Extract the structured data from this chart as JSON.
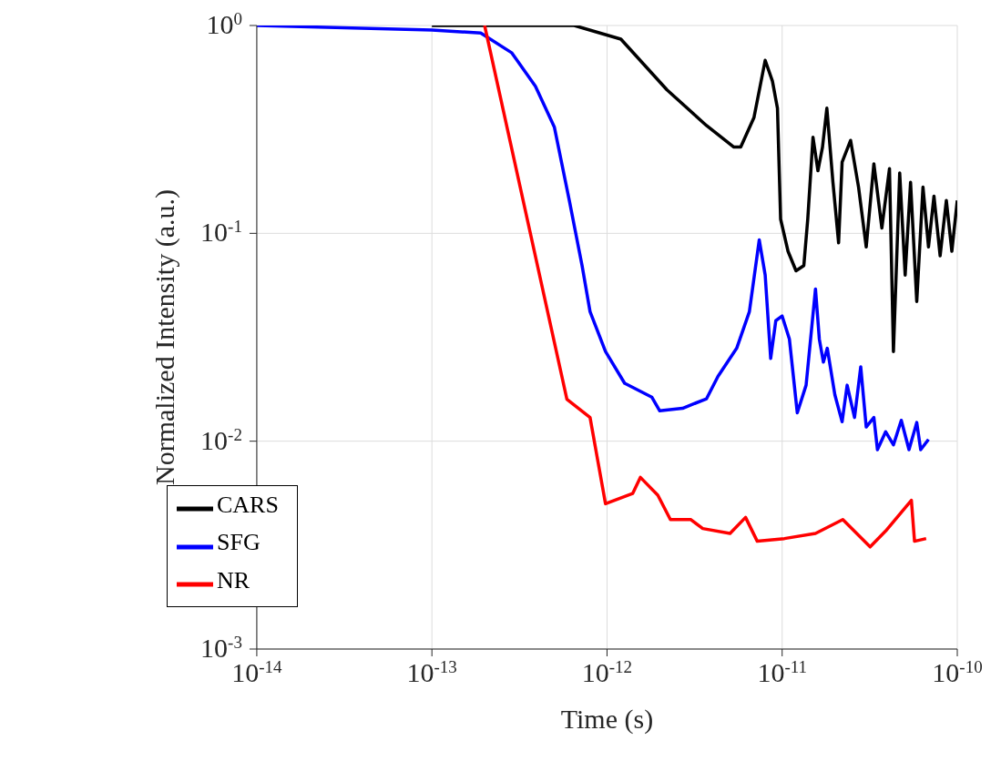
{
  "chart_data": {
    "type": "line",
    "xlabel": "Time (s)",
    "ylabel": "Normalized Intensity (a.u.)",
    "log": "xy",
    "grid": true,
    "legend": "bottom left",
    "line_style": "solid",
    "marker": "none",
    "xlim": [
      1e-14,
      1e-10
    ],
    "ylim": [
      0.001,
      1
    ],
    "xticks": [
      {
        "value": 1e-14,
        "label": "10$^{-14}$"
      },
      {
        "value": 1e-13,
        "label": "10$^{-13}$"
      },
      {
        "value": 1e-12,
        "label": "10$^{-12}$"
      },
      {
        "value": 1e-11,
        "label": "10$^{-11}$"
      },
      {
        "value": 1e-10,
        "label": "10$^{-10}$"
      }
    ],
    "yticks": [
      {
        "value": 0.001,
        "label": "10$^{-3}$"
      },
      {
        "value": 0.01,
        "label": "10$^{-2}$"
      },
      {
        "value": 0.1,
        "label": "10$^{-1}$"
      },
      {
        "value": 1,
        "label": "10$^{0}$"
      }
    ],
    "series": [
      {
        "name": "CARS",
        "color": "#000000",
        "x": [
          1e-13,
          6.5e-13,
          1.2e-12,
          2.2e-12,
          3.7e-12,
          5.3e-12,
          5.8e-12,
          6.9e-12,
          8e-12,
          8.8e-12,
          9.4e-12,
          9.8e-12,
          1.08e-11,
          1.2e-11,
          1.33e-11,
          1.4e-11,
          1.5e-11,
          1.6e-11,
          1.7e-11,
          1.8e-11,
          1.95e-11,
          2.1e-11,
          2.2e-11,
          2.46e-11,
          2.73e-11,
          3.02e-11,
          3.34e-11,
          3.71e-11,
          4.1e-11,
          4.32e-11,
          4.69e-11,
          5.04e-11,
          5.41e-11,
          5.87e-11,
          6.37e-11,
          6.85e-11,
          7.36e-11,
          7.98e-11,
          8.66e-11,
          9.31e-11,
          1e-10
        ],
        "values": [
          1,
          1,
          0.86,
          0.49,
          0.33,
          0.26,
          0.26,
          0.36,
          0.68,
          0.54,
          0.4,
          0.117,
          0.082,
          0.066,
          0.07,
          0.117,
          0.29,
          0.2,
          0.26,
          0.4,
          0.176,
          0.09,
          0.22,
          0.28,
          0.167,
          0.086,
          0.216,
          0.106,
          0.205,
          0.027,
          0.195,
          0.063,
          0.176,
          0.047,
          0.167,
          0.086,
          0.151,
          0.078,
          0.144,
          0.082,
          0.144
        ]
      },
      {
        "name": "SFG",
        "color": "#0000ff",
        "x": [
          1e-14,
          1e-13,
          1.9e-13,
          2.85e-13,
          3.9e-13,
          5e-13,
          6.1e-13,
          7.2e-13,
          8e-13,
          9.8e-13,
          1.26e-12,
          1.8e-12,
          2e-12,
          2.7e-12,
          3.7e-12,
          4.3e-12,
          5.5e-12,
          6.5e-12,
          7.4e-12,
          8e-12,
          8.6e-12,
          9.2e-12,
          1e-11,
          1.1e-11,
          1.22e-11,
          1.37e-11,
          1.55e-11,
          1.63e-11,
          1.72e-11,
          1.81e-11,
          2e-11,
          2.2e-11,
          2.35e-11,
          2.59e-11,
          2.81e-11,
          3.02e-11,
          3.34e-11,
          3.5e-11,
          3.9e-11,
          4.32e-11,
          4.79e-11,
          5.3e-11,
          5.87e-11,
          6.18e-11,
          6.85e-11
        ],
        "values": [
          1,
          0.95,
          0.92,
          0.74,
          0.51,
          0.325,
          0.143,
          0.07,
          0.042,
          0.027,
          0.019,
          0.0163,
          0.014,
          0.0144,
          0.016,
          0.0205,
          0.028,
          0.042,
          0.093,
          0.063,
          0.025,
          0.038,
          0.04,
          0.031,
          0.0137,
          0.0186,
          0.054,
          0.031,
          0.024,
          0.028,
          0.0167,
          0.0124,
          0.0186,
          0.013,
          0.0228,
          0.0117,
          0.013,
          0.0091,
          0.0111,
          0.0096,
          0.0126,
          0.0091,
          0.0123,
          0.0091,
          0.0102
        ]
      },
      {
        "name": "NR",
        "color": "#ff0000",
        "x": [
          2e-13,
          5.9e-13,
          8e-13,
          9.8e-13,
          1.4e-12,
          1.55e-12,
          1.95e-12,
          2.3e-12,
          3e-12,
          3.52e-12,
          5.04e-12,
          6.18e-12,
          7.21e-12,
          1.03e-11,
          1.55e-11,
          2.22e-11,
          3.18e-11,
          3.9e-11,
          5.47e-11,
          5.7e-11,
          6.64e-11
        ],
        "values": [
          1,
          0.0159,
          0.013,
          0.005,
          0.0056,
          0.0067,
          0.0055,
          0.0042,
          0.0042,
          0.0038,
          0.0036,
          0.0043,
          0.0033,
          0.0034,
          0.0036,
          0.0042,
          0.0031,
          0.0037,
          0.0052,
          0.0033,
          0.0034
        ]
      }
    ]
  }
}
